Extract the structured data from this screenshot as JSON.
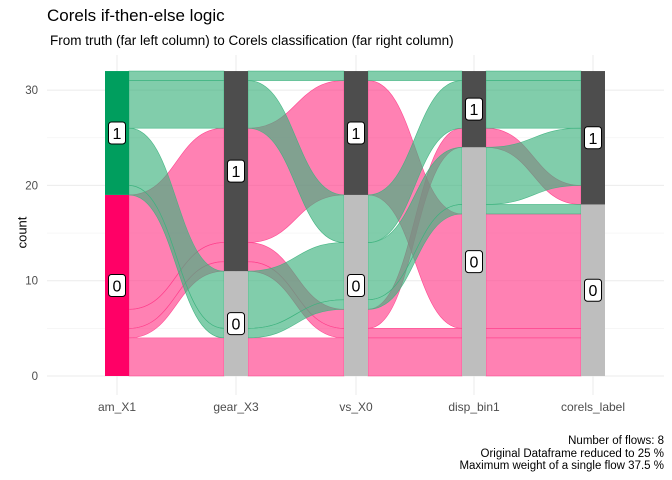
{
  "chart_data": {
    "type": "alluvial",
    "title": "Corels if-then-else logic",
    "subtitle": "From truth (far left column) to Corels classification (far right column)",
    "ylabel": "count",
    "xlabel": "",
    "ylim": [
      0,
      32
    ],
    "yticks": [
      0,
      10,
      20,
      30
    ],
    "axes": [
      "am_X1",
      "gear_X3",
      "vs_X0",
      "disp_bin1",
      "corels_label"
    ],
    "grid": true,
    "colors": {
      "class_1": "#009E5E",
      "class_0": "#FF0066",
      "flow_1": "#3DB27E",
      "flow_0": "#FF3D8B",
      "stratum_1": "#4D4D4D",
      "stratum_0": "#BEBEBE"
    },
    "flows": [
      {
        "class": "0",
        "weight": 4,
        "path": [
          "0",
          "0",
          "0",
          "0",
          "0"
        ]
      },
      {
        "class": "0",
        "weight": 12,
        "path": [
          "0",
          "1",
          "1",
          "0",
          "0"
        ]
      },
      {
        "class": "0",
        "weight": 1,
        "path": [
          "0",
          "1",
          "0",
          "0",
          "0"
        ]
      },
      {
        "class": "0",
        "weight": 2,
        "path": [
          "0",
          "1",
          "0",
          "1",
          "1"
        ]
      },
      {
        "class": "1",
        "weight": 1,
        "path": [
          "1",
          "0",
          "0",
          "0",
          "0"
        ]
      },
      {
        "class": "1",
        "weight": 6,
        "path": [
          "1",
          "0",
          "0",
          "0",
          "1"
        ]
      },
      {
        "class": "1",
        "weight": 1,
        "path": [
          "1",
          "1",
          "1",
          "1",
          "1"
        ]
      },
      {
        "class": "1",
        "weight": 5,
        "path": [
          "1",
          "1",
          "0",
          "1",
          "1"
        ]
      }
    ],
    "stratum_labels": [
      "0",
      "1"
    ],
    "caption": [
      "Number of flows: 8",
      "Original Dataframe reduced to 25 %",
      "Maximum weight of a single flow 37.5 %"
    ]
  }
}
